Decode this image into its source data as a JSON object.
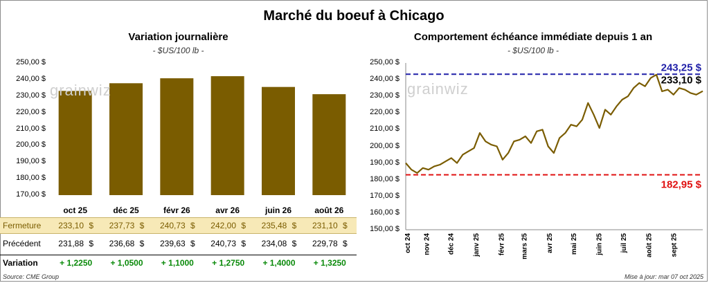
{
  "main_title": "Marché du boeuf à Chicago",
  "left": {
    "title": "Variation journalière",
    "unit": "- $US/100 lb -",
    "y_ticks": [
      "250,00 $",
      "240,00 $",
      "230,00 $",
      "220,00 $",
      "210,00 $",
      "200,00 $",
      "190,00 $",
      "180,00 $",
      "170,00 $"
    ],
    "table": {
      "row1_label": "Fermeture",
      "row2_label": "Précédent",
      "row3_label": "Variation",
      "dollar": "$",
      "fermeture": [
        "233,10",
        "237,73",
        "240,73",
        "242,00",
        "235,48",
        "231,10"
      ],
      "precedent": [
        "231,88",
        "236,68",
        "239,63",
        "240,73",
        "234,08",
        "229,78"
      ],
      "variation": [
        "+ 1,2250",
        "+ 1,0500",
        "+ 1,1000",
        "+ 1,2750",
        "+ 1,4000",
        "+ 1,3250"
      ]
    },
    "source": "Source: CME Group"
  },
  "right": {
    "title": "Comportement  échéance immédiate depuis 1 an",
    "unit": "- $US/100 lb -",
    "y_ticks": [
      "250,00 $",
      "240,00 $",
      "230,00 $",
      "220,00 $",
      "210,00 $",
      "200,00 $",
      "190,00 $",
      "180,00 $",
      "170,00 $",
      "160,00 $",
      "150,00 $"
    ],
    "x_ticks": [
      "oct 24",
      "nov 24",
      "déc 24",
      "janv 25",
      "févr 25",
      "mars 25",
      "avr 25",
      "mai 25",
      "juin 25",
      "juil 25",
      "août 25",
      "sept 25"
    ],
    "max_label": "243,25 $",
    "last_label": "233,10 $",
    "min_label": "182,95 $",
    "update": "Mise à jour: mar 07 oct 2025"
  },
  "watermark": "grainwiz",
  "colors": {
    "bar": "#7a5c00",
    "max_line": "#1f1fa8",
    "min_line": "#e01010",
    "positive": "#0a8a0a",
    "fermeture_bg": "#f7e9b7"
  },
  "chart_data": [
    {
      "type": "bar",
      "title": "Variation journalière",
      "categories": [
        "oct 25",
        "déc 25",
        "févr 26",
        "avr 26",
        "juin 26",
        "août 26"
      ],
      "values": [
        233.1,
        237.73,
        240.73,
        242.0,
        235.48,
        231.1
      ],
      "ylim": [
        170,
        250
      ],
      "ylabel": "$US/100 lb"
    },
    {
      "type": "line",
      "title": "Comportement  échéance immédiate depuis 1 an",
      "ylim": [
        150,
        250
      ],
      "ylabel": "$US/100 lb",
      "reference_lines": [
        {
          "label": "243,25 $",
          "value": 243.25
        },
        {
          "label": "182,95 $",
          "value": 182.95
        }
      ],
      "x": [
        "2024-10-07",
        "2024-10-14",
        "2024-10-21",
        "2024-10-28",
        "2024-11-04",
        "2024-11-11",
        "2024-11-18",
        "2024-11-25",
        "2024-12-02",
        "2024-12-09",
        "2024-12-16",
        "2024-12-23",
        "2024-12-30",
        "2025-01-06",
        "2025-01-13",
        "2025-01-20",
        "2025-01-27",
        "2025-02-03",
        "2025-02-10",
        "2025-02-17",
        "2025-02-24",
        "2025-03-03",
        "2025-03-10",
        "2025-03-17",
        "2025-03-24",
        "2025-03-31",
        "2025-04-07",
        "2025-04-14",
        "2025-04-21",
        "2025-04-28",
        "2025-05-05",
        "2025-05-12",
        "2025-05-19",
        "2025-05-26",
        "2025-06-02",
        "2025-06-09",
        "2025-06-16",
        "2025-06-23",
        "2025-06-30",
        "2025-07-07",
        "2025-07-14",
        "2025-07-21",
        "2025-07-28",
        "2025-08-04",
        "2025-08-11",
        "2025-08-18",
        "2025-08-25",
        "2025-09-01",
        "2025-09-08",
        "2025-09-15",
        "2025-09-22",
        "2025-09-29",
        "2025-10-07"
      ],
      "values": [
        190,
        186,
        184,
        187,
        186,
        188,
        189,
        191,
        193,
        190,
        195,
        197,
        199,
        208,
        203,
        201,
        200,
        192,
        196,
        203,
        204,
        206,
        202,
        209,
        210,
        200,
        196,
        205,
        208,
        213,
        212,
        216,
        226,
        219,
        211,
        222,
        219,
        224,
        228,
        230,
        235,
        238,
        236,
        241,
        243,
        233,
        234,
        231,
        235,
        234,
        232,
        231,
        233.1
      ]
    }
  ]
}
